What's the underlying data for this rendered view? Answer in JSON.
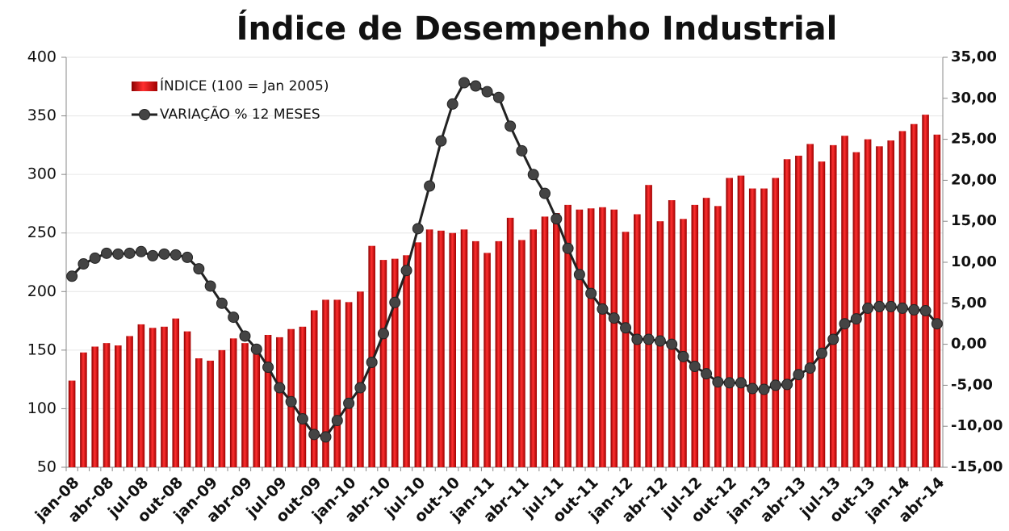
{
  "chart_data": {
    "type": "bar-line",
    "title": "Índice de Desempenho  Industrial",
    "categories": [
      "jan-08",
      null,
      null,
      "abr-08",
      null,
      null,
      "jul-08",
      null,
      null,
      "out-08",
      null,
      null,
      "jan-09",
      null,
      null,
      "abr-09",
      null,
      null,
      "jul-09",
      null,
      null,
      "out-09",
      null,
      null,
      "jan-10",
      null,
      null,
      "abr-10",
      null,
      null,
      "jul-10",
      null,
      null,
      "out-10",
      null,
      null,
      "jan-11",
      null,
      null,
      "abr-11",
      null,
      null,
      "jul-11",
      null,
      null,
      "out-11",
      null,
      null,
      "jan-12",
      null,
      null,
      "abr-12",
      null,
      null,
      "jul-12",
      null,
      null,
      "out-12",
      null,
      null,
      "jan-13",
      null,
      null,
      "abr-13",
      null,
      null,
      "jul-13",
      null,
      null,
      "out-13",
      null,
      null,
      "jan-14",
      null,
      null,
      "abr-14"
    ],
    "series": [
      {
        "name": "ÍNDICE (100 = Jan 2005)",
        "color": "#d40000",
        "axis": "y",
        "values": [
          124,
          148,
          153,
          156,
          154,
          162,
          172,
          169,
          170,
          177,
          166,
          143,
          141,
          150,
          160,
          156,
          152,
          163,
          161,
          168,
          170,
          184,
          193,
          193,
          191,
          200,
          239,
          227,
          228,
          231,
          242,
          253,
          252,
          250,
          253,
          243,
          233,
          243,
          263,
          244,
          253,
          264,
          267,
          274,
          270,
          271,
          272,
          270,
          251,
          266,
          291,
          260,
          278,
          262,
          274,
          280,
          273,
          297,
          299,
          288,
          288,
          297,
          313,
          316,
          326,
          311,
          325,
          333,
          319,
          330,
          324,
          329,
          337,
          343,
          351,
          334
        ]
      },
      {
        "name": "VARIAÇÃO % 12 MESES",
        "color": "#222222",
        "axis": "y2",
        "values": [
          8.3,
          9.8,
          10.5,
          11.1,
          11.0,
          11.1,
          11.3,
          10.8,
          11.0,
          10.9,
          10.6,
          9.2,
          7.1,
          5.0,
          3.3,
          1.0,
          -0.6,
          -2.8,
          -5.3,
          -7.0,
          -9.1,
          -11.0,
          -11.3,
          -9.3,
          -7.2,
          -5.3,
          -2.2,
          1.3,
          5.1,
          9.0,
          14.1,
          19.3,
          24.8,
          29.3,
          31.9,
          31.5,
          30.8,
          30.1,
          26.6,
          23.6,
          20.7,
          18.4,
          15.3,
          11.7,
          8.5,
          6.2,
          4.3,
          3.2,
          2.0,
          0.6,
          0.6,
          0.4,
          0.0,
          -1.5,
          -2.7,
          -3.6,
          -4.6,
          -4.7,
          -4.7,
          -5.4,
          -5.5,
          -5.0,
          -4.9,
          -3.7,
          -2.9,
          -1.1,
          0.6,
          2.5,
          3.1,
          4.4,
          4.6,
          4.6,
          4.4,
          4.2,
          4.1,
          2.5
        ]
      }
    ],
    "ylim": [
      50,
      400
    ],
    "yticks": [
      50,
      100,
      150,
      200,
      250,
      300,
      350,
      400
    ],
    "y2lim": [
      -15,
      35
    ],
    "y2ticks": [
      {
        "value": -15,
        "label": "-15,00"
      },
      {
        "value": -10,
        "label": "-10,00"
      },
      {
        "value": -5,
        "label": "-5,00"
      },
      {
        "value": 0,
        "label": "0,00"
      },
      {
        "value": 5,
        "label": "5,00"
      },
      {
        "value": 10,
        "label": "10,00"
      },
      {
        "value": 15,
        "label": "15,00"
      },
      {
        "value": 20,
        "label": "20,00"
      },
      {
        "value": 25,
        "label": "25,00"
      },
      {
        "value": 30,
        "label": "30,00"
      },
      {
        "value": 35,
        "label": "35,00"
      }
    ],
    "grid": true,
    "legend": "upper left"
  }
}
